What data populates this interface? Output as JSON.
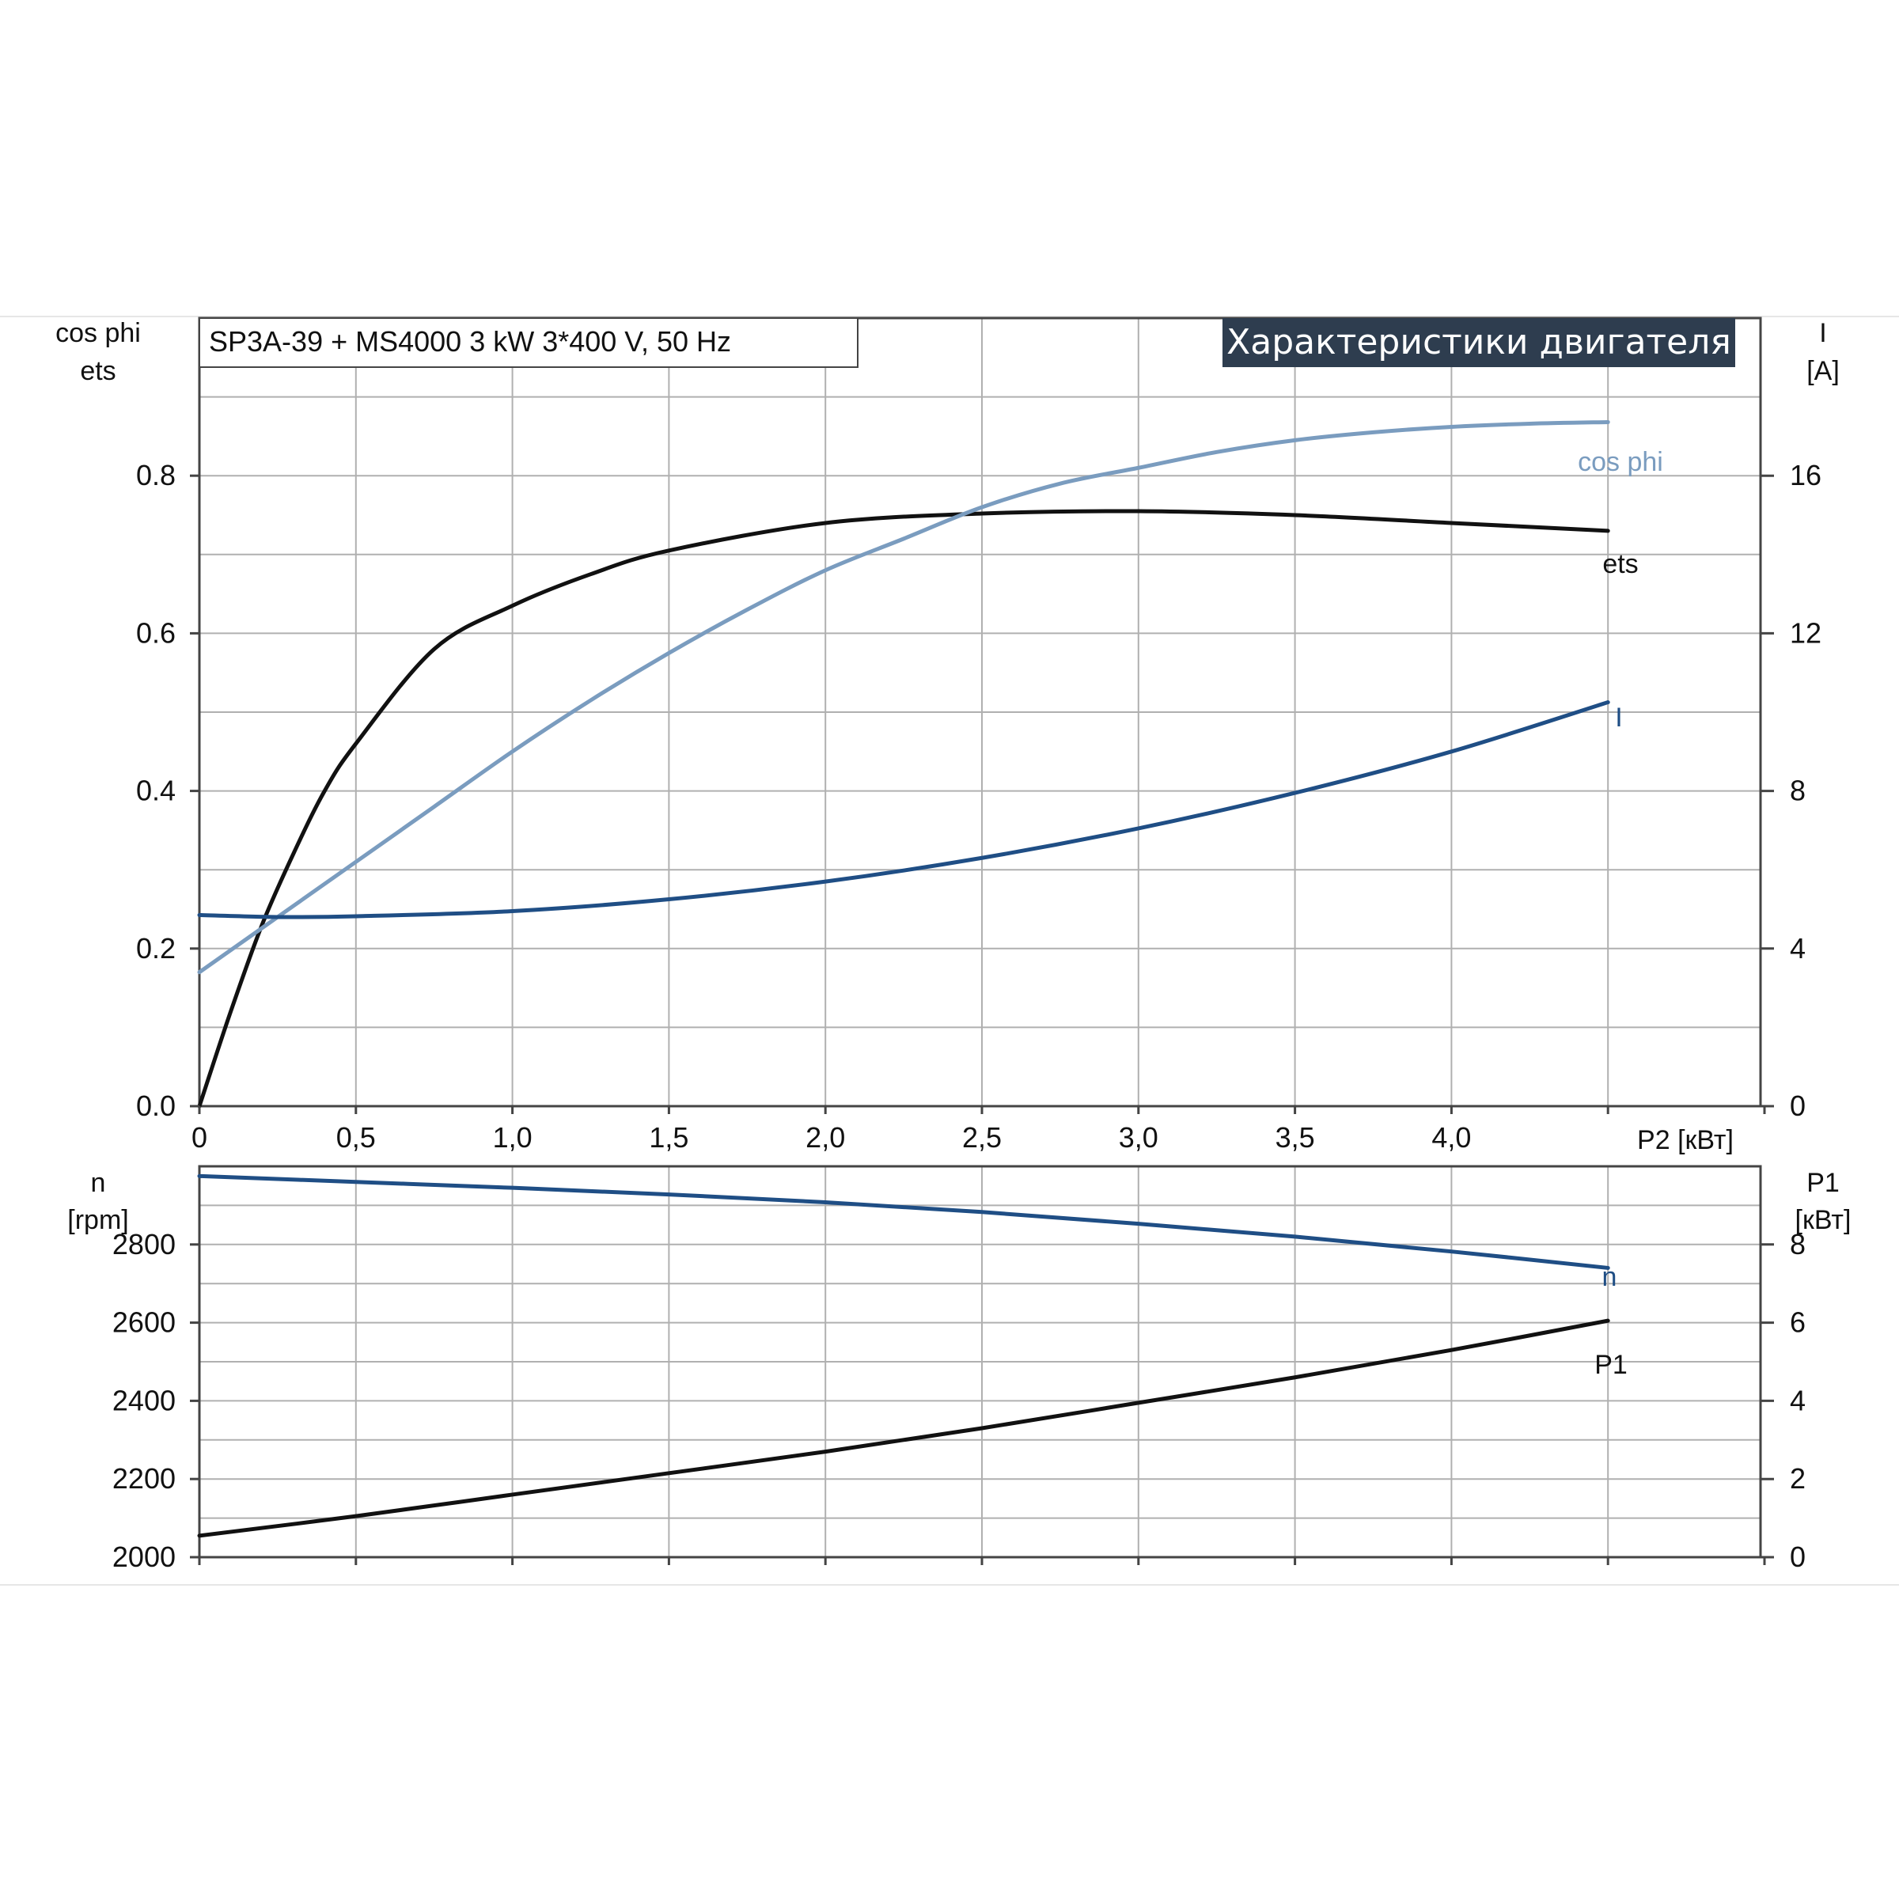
{
  "title": "Характеристики двигателя",
  "subtitle": "SP3A-39 + MS4000   3 kW   3*400 V, 50 Hz",
  "colors": {
    "ets": "#111111",
    "cos_phi": "#7a9cbf",
    "I": "#1f4e85",
    "n": "#1f4e85",
    "P1": "#111111",
    "title_bg": "#2e3d4f",
    "grid": "#b0b0b0"
  },
  "chart_data": [
    {
      "type": "line",
      "xlabel": "P2 [кВт]",
      "x_ticks": [
        "0",
        "0,5",
        "1,0",
        "1,5",
        "2,0",
        "2,5",
        "3,0",
        "3,5",
        "4,0"
      ],
      "xlim": [
        0,
        5.0
      ],
      "left_axis": {
        "label_lines": [
          "cos phi",
          "ets"
        ],
        "ticks": [
          "0.0",
          "0.2",
          "0.4",
          "0.6",
          "0.8"
        ],
        "ylim": [
          0,
          1.0
        ]
      },
      "right_axis": {
        "label_lines": [
          "I",
          "[A]"
        ],
        "ticks": [
          "0",
          "4",
          "8",
          "12",
          "16"
        ],
        "ylim": [
          0,
          20
        ]
      },
      "series": [
        {
          "name": "ets",
          "axis": "left",
          "x": [
            0,
            0.1,
            0.2,
            0.3,
            0.4,
            0.5,
            0.75,
            1.0,
            1.25,
            1.5,
            2.0,
            2.5,
            3.0,
            3.5,
            4.0,
            4.5
          ],
          "y": [
            0.0,
            0.12,
            0.23,
            0.32,
            0.4,
            0.46,
            0.58,
            0.635,
            0.675,
            0.705,
            0.74,
            0.752,
            0.755,
            0.75,
            0.74,
            0.73
          ]
        },
        {
          "name": "cos phi",
          "axis": "left",
          "x": [
            0,
            0.25,
            0.5,
            0.75,
            1.0,
            1.25,
            1.5,
            1.75,
            2.0,
            2.25,
            2.5,
            2.75,
            3.0,
            3.25,
            3.5,
            3.75,
            4.0,
            4.25,
            4.5
          ],
          "y": [
            0.17,
            0.24,
            0.31,
            0.38,
            0.45,
            0.515,
            0.575,
            0.63,
            0.68,
            0.72,
            0.76,
            0.79,
            0.81,
            0.83,
            0.845,
            0.855,
            0.862,
            0.866,
            0.868
          ]
        },
        {
          "name": "I",
          "axis": "right",
          "x": [
            0,
            0.25,
            0.5,
            1.0,
            1.5,
            2.0,
            2.5,
            3.0,
            3.5,
            4.0,
            4.5
          ],
          "y": [
            4.85,
            4.8,
            4.82,
            4.95,
            5.25,
            5.7,
            6.3,
            7.05,
            7.95,
            9.0,
            10.25
          ]
        }
      ]
    },
    {
      "type": "line",
      "xlim": [
        0,
        5.0
      ],
      "left_axis": {
        "label_lines": [
          "n",
          "[rpm]"
        ],
        "ticks": [
          "2000",
          "2200",
          "2400",
          "2600",
          "2800"
        ],
        "ylim": [
          2000,
          3000
        ]
      },
      "right_axis": {
        "label_lines": [
          "P1",
          "[кВт]"
        ],
        "ticks": [
          "0",
          "2",
          "4",
          "6",
          "8"
        ],
        "ylim": [
          0,
          10
        ]
      },
      "series": [
        {
          "name": "n",
          "axis": "left",
          "x": [
            0,
            0.5,
            1.0,
            1.5,
            2.0,
            2.5,
            3.0,
            3.5,
            4.0,
            4.5
          ],
          "y": [
            2975,
            2960,
            2945,
            2928,
            2908,
            2883,
            2853,
            2820,
            2782,
            2740
          ]
        },
        {
          "name": "P1",
          "axis": "right",
          "x": [
            0,
            0.5,
            1.0,
            1.5,
            2.0,
            2.5,
            3.0,
            3.5,
            4.0,
            4.5
          ],
          "y": [
            0.55,
            1.05,
            1.6,
            2.15,
            2.7,
            3.3,
            3.95,
            4.6,
            5.3,
            6.05
          ]
        }
      ]
    }
  ]
}
